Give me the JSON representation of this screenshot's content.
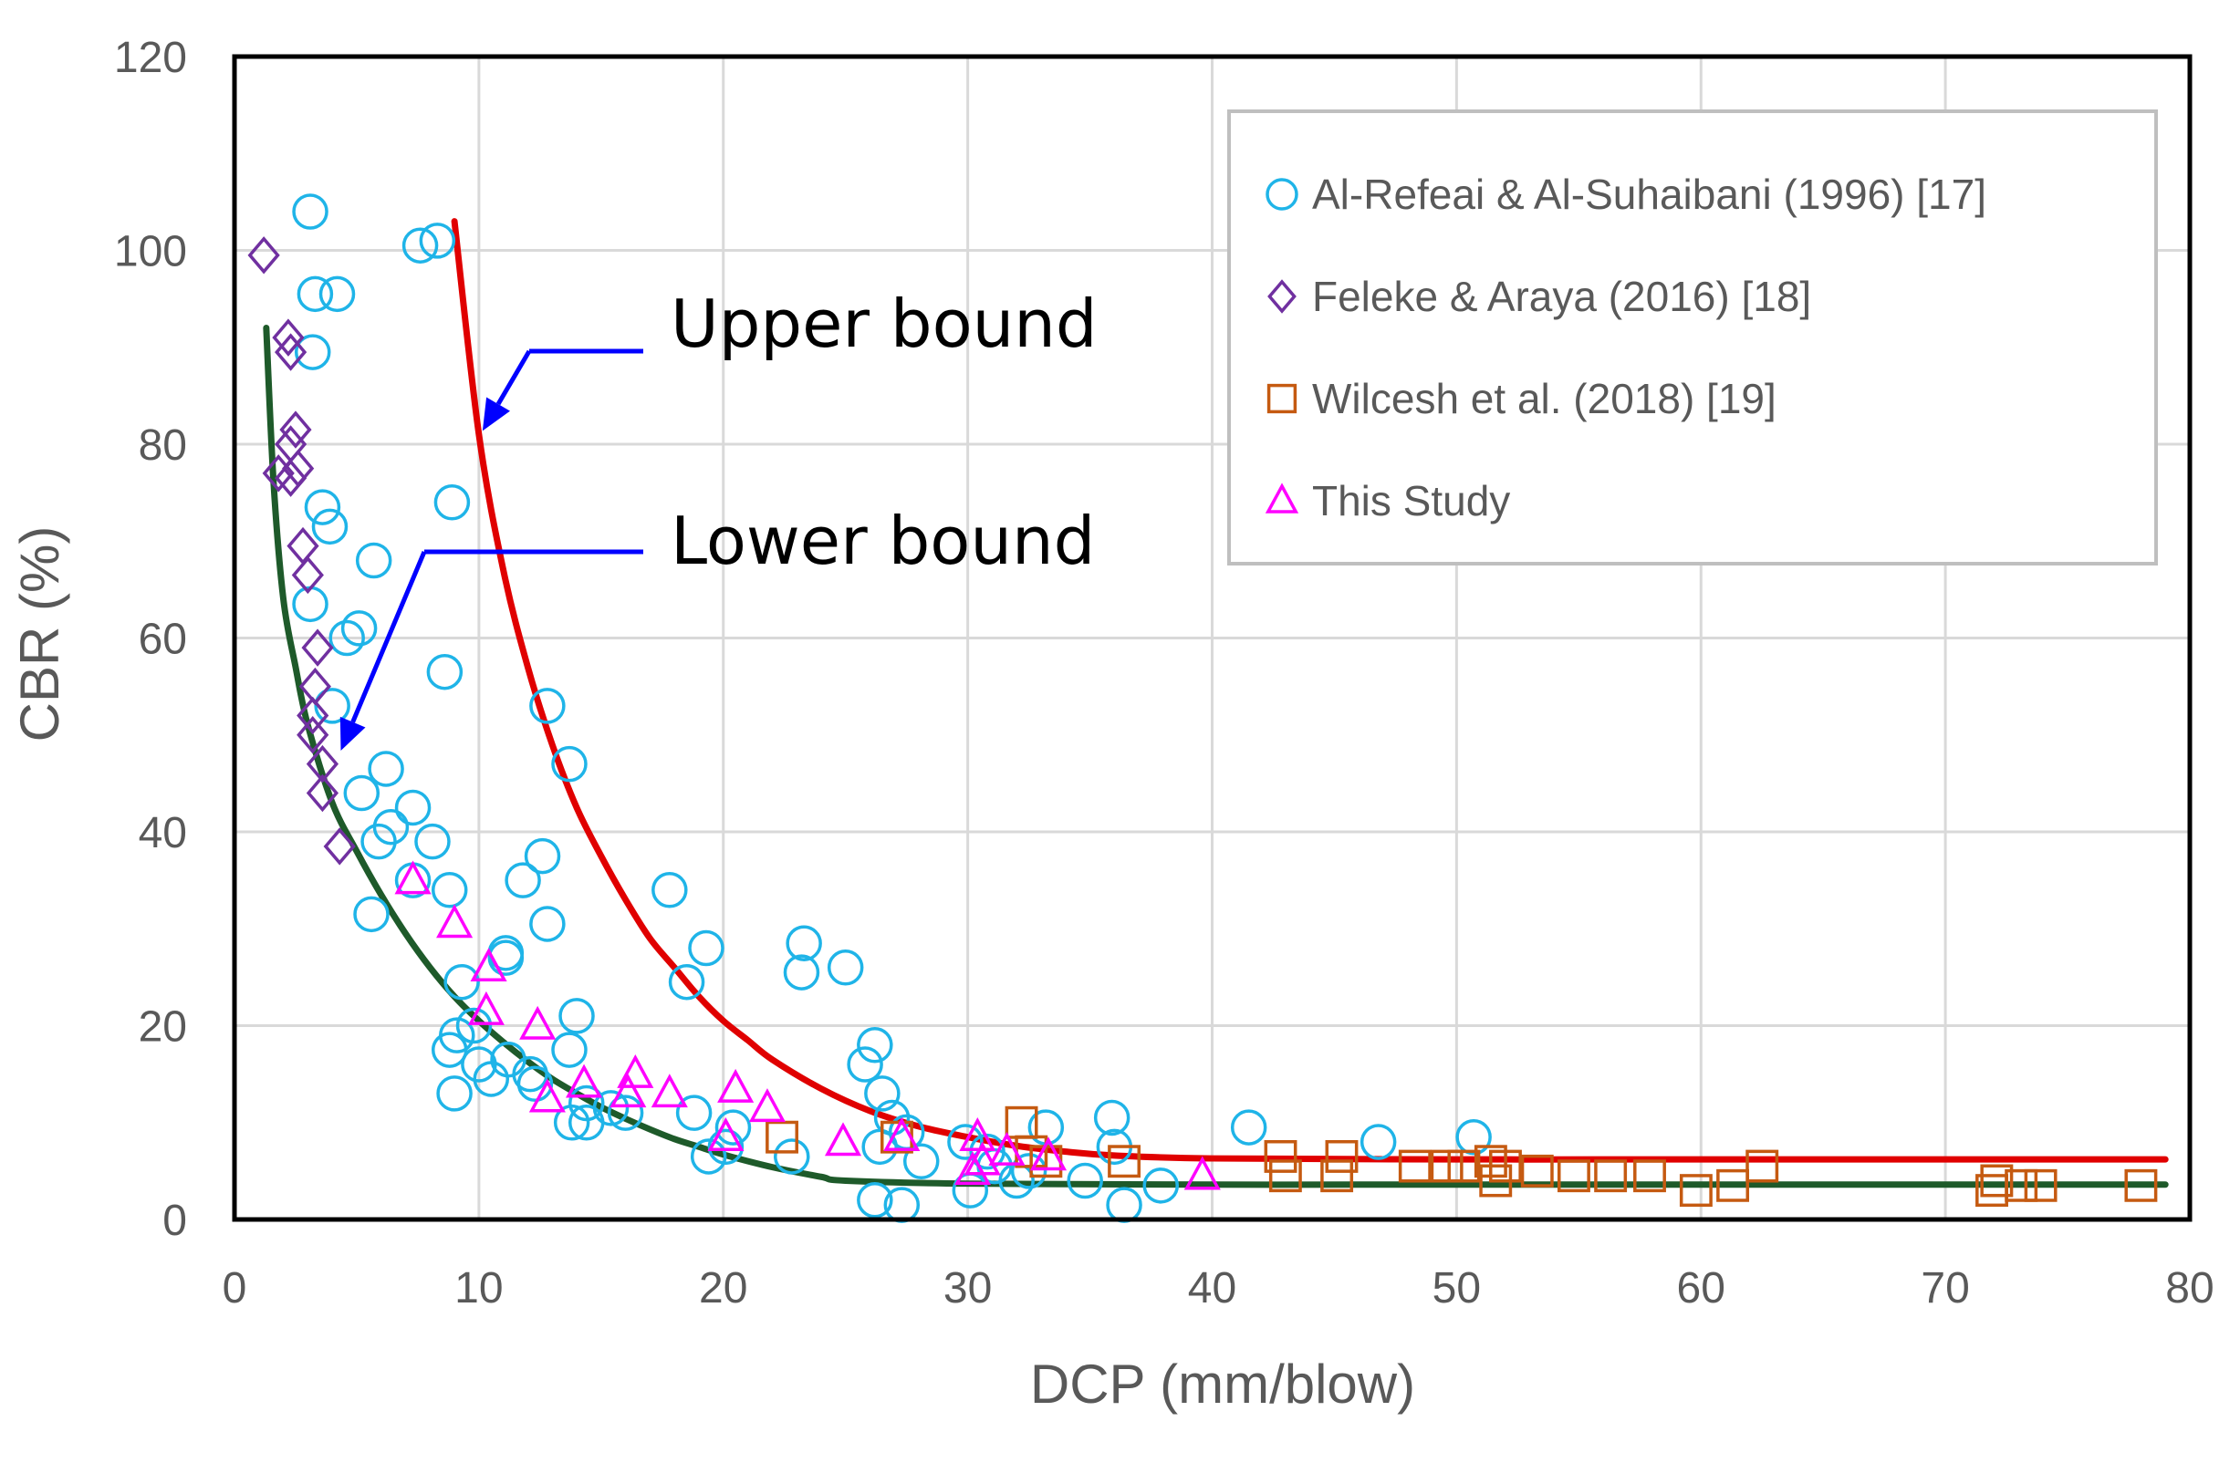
{
  "chart_data": {
    "type": "scatter",
    "title": "",
    "xlabel": "DCP (mm/blow)",
    "ylabel": "CBR (%)",
    "xlim": [
      0,
      80
    ],
    "ylim": [
      0,
      120
    ],
    "xticks": [
      "0",
      "10",
      "20",
      "30",
      "40",
      "50",
      "60",
      "70",
      "80"
    ],
    "yticks": [
      "0",
      "20",
      "40",
      "60",
      "80",
      "100",
      "120"
    ],
    "grid": true,
    "legend_position": "top-right",
    "series": [
      {
        "name": "Al-Refeai &  Al-Suhaibani (1996) [17]",
        "marker": "circle",
        "color": "#1fb4e8",
        "points": [
          [
            3.1,
            104
          ],
          [
            7.6,
            100.5
          ],
          [
            8.3,
            101
          ],
          [
            3.3,
            95.5
          ],
          [
            4.2,
            95.5
          ],
          [
            3.2,
            89.5
          ],
          [
            8.9,
            74
          ],
          [
            3.6,
            73.5
          ],
          [
            3.9,
            71.5
          ],
          [
            5.7,
            68
          ],
          [
            3.1,
            63.5
          ],
          [
            4.6,
            60
          ],
          [
            5.1,
            61
          ],
          [
            8.6,
            56.5
          ],
          [
            4.0,
            53
          ],
          [
            12.8,
            53
          ],
          [
            13.7,
            47
          ],
          [
            6.2,
            46.5
          ],
          [
            5.2,
            44
          ],
          [
            7.3,
            42.5
          ],
          [
            6.4,
            40.5
          ],
          [
            5.9,
            39
          ],
          [
            8.1,
            39
          ],
          [
            12.6,
            37.5
          ],
          [
            7.3,
            35
          ],
          [
            11.8,
            35
          ],
          [
            8.8,
            34
          ],
          [
            17.8,
            34
          ],
          [
            5.6,
            31.5
          ],
          [
            12.8,
            30.5
          ],
          [
            23.3,
            28.5
          ],
          [
            19.3,
            28
          ],
          [
            25.0,
            26
          ],
          [
            11.1,
            27.5
          ],
          [
            23.2,
            25.5
          ],
          [
            11.1,
            27
          ],
          [
            18.5,
            24.5
          ],
          [
            9.3,
            24.5
          ],
          [
            14.0,
            21
          ],
          [
            9.1,
            19
          ],
          [
            8.8,
            17.5
          ],
          [
            9.8,
            20
          ],
          [
            10.0,
            16
          ],
          [
            11.2,
            16.5
          ],
          [
            10.5,
            14.5
          ],
          [
            12.1,
            15
          ],
          [
            9.0,
            13
          ],
          [
            13.7,
            17.5
          ],
          [
            12.3,
            14
          ],
          [
            26.2,
            18
          ],
          [
            25.8,
            16
          ],
          [
            14.4,
            12
          ],
          [
            15.4,
            11.5
          ],
          [
            13.8,
            10
          ],
          [
            14.4,
            10
          ],
          [
            26.5,
            13
          ],
          [
            16.0,
            11
          ],
          [
            18.8,
            11
          ],
          [
            20.4,
            9.5
          ],
          [
            19.4,
            6.5
          ],
          [
            20.1,
            7.5
          ],
          [
            26.9,
            10.5
          ],
          [
            29.9,
            8
          ],
          [
            26.4,
            7.5
          ],
          [
            27.5,
            9
          ],
          [
            28.1,
            6
          ],
          [
            22.8,
            6.5
          ],
          [
            30.8,
            7
          ],
          [
            33.2,
            9.5
          ],
          [
            31.1,
            5.5
          ],
          [
            32.5,
            5
          ],
          [
            32.0,
            4
          ],
          [
            35.9,
            10.5
          ],
          [
            36.0,
            7.5
          ],
          [
            34.8,
            4
          ],
          [
            37.9,
            3.5
          ],
          [
            30.1,
            3
          ],
          [
            26.2,
            2
          ],
          [
            27.3,
            1.5
          ],
          [
            36.4,
            1.5
          ],
          [
            41.5,
            9.5
          ],
          [
            46.8,
            8
          ],
          [
            50.7,
            8.5
          ]
        ]
      },
      {
        "name": "Feleke & Araya (2016)  [18]",
        "marker": "diamond",
        "color": "#7030a0",
        "points": [
          [
            1.2,
            99.5
          ],
          [
            2.2,
            91
          ],
          [
            2.3,
            89.5
          ],
          [
            2.5,
            81.5
          ],
          [
            2.3,
            80
          ],
          [
            2.6,
            77.5
          ],
          [
            1.8,
            77
          ],
          [
            2.3,
            76.5
          ],
          [
            2.8,
            69.5
          ],
          [
            3.0,
            66.5
          ],
          [
            3.4,
            59
          ],
          [
            3.3,
            55
          ],
          [
            3.2,
            52
          ],
          [
            3.2,
            50
          ],
          [
            3.6,
            47
          ],
          [
            3.6,
            44
          ],
          [
            4.3,
            38.5
          ]
        ]
      },
      {
        "name": "Wilcesh et al. (2018) [19]",
        "marker": "square",
        "color": "#c55a11",
        "points": [
          [
            22.4,
            8.5
          ],
          [
            27.1,
            8.5
          ],
          [
            32.2,
            10
          ],
          [
            32.6,
            7
          ],
          [
            33.2,
            6
          ],
          [
            36.4,
            6
          ],
          [
            42.8,
            6.5
          ],
          [
            43.0,
            4.5
          ],
          [
            45.1,
            4.5
          ],
          [
            45.3,
            6.5
          ],
          [
            48.3,
            5.5
          ],
          [
            49.6,
            5.5
          ],
          [
            50.3,
            5.5
          ],
          [
            51.4,
            6
          ],
          [
            51.6,
            4
          ],
          [
            52.0,
            5.5
          ],
          [
            53.3,
            5
          ],
          [
            54.8,
            4.5
          ],
          [
            56.3,
            4.5
          ],
          [
            57.9,
            4.5
          ],
          [
            59.8,
            3
          ],
          [
            61.3,
            3.5
          ],
          [
            62.5,
            5.5
          ],
          [
            71.9,
            3
          ],
          [
            72.1,
            4
          ],
          [
            73.1,
            3.5
          ],
          [
            73.9,
            3.5
          ],
          [
            78.0,
            3.5
          ]
        ]
      },
      {
        "name": "This Study",
        "marker": "triangle",
        "color": "#ff00ff",
        "points": [
          [
            7.3,
            35
          ],
          [
            9.0,
            30.5
          ],
          [
            10.4,
            26
          ],
          [
            10.3,
            21.5
          ],
          [
            12.4,
            20
          ],
          [
            16.4,
            15
          ],
          [
            14.3,
            14
          ],
          [
            16.1,
            13
          ],
          [
            12.8,
            12.5
          ],
          [
            17.8,
            13
          ],
          [
            20.5,
            13.5
          ],
          [
            21.8,
            11.5
          ],
          [
            20.1,
            8.5
          ],
          [
            24.9,
            8
          ],
          [
            27.3,
            8.5
          ],
          [
            30.4,
            8.5
          ],
          [
            31.6,
            7
          ],
          [
            30.2,
            5
          ],
          [
            30.6,
            6
          ],
          [
            33.3,
            6.5
          ],
          [
            39.6,
            4.5
          ]
        ]
      }
    ],
    "curves": [
      {
        "name": "Upper bound",
        "color": "#e00000",
        "points": [
          [
            9,
            103
          ],
          [
            10,
            81
          ],
          [
            11,
            67
          ],
          [
            12,
            57
          ],
          [
            13,
            49
          ],
          [
            14,
            42.5
          ],
          [
            15,
            37.5
          ],
          [
            16,
            33
          ],
          [
            17,
            29
          ],
          [
            18,
            26
          ],
          [
            19,
            23
          ],
          [
            20,
            20.5
          ],
          [
            21,
            18.5
          ],
          [
            22,
            16.5
          ],
          [
            24,
            13.5
          ],
          [
            26,
            11.2
          ],
          [
            28,
            9.6
          ],
          [
            30,
            8.5
          ],
          [
            32,
            7.6
          ],
          [
            34,
            7.0
          ],
          [
            36,
            6.6
          ],
          [
            40,
            6.3
          ],
          [
            50,
            6.2
          ],
          [
            60,
            6.2
          ],
          [
            70,
            6.2
          ],
          [
            79,
            6.2
          ]
        ]
      },
      {
        "name": "Lower bound",
        "color": "#1e5a2a",
        "points": [
          [
            1.3,
            92
          ],
          [
            1.6,
            76
          ],
          [
            2,
            64
          ],
          [
            2.5,
            57
          ],
          [
            3,
            51
          ],
          [
            4,
            43
          ],
          [
            5,
            38
          ],
          [
            6,
            33.5
          ],
          [
            7,
            29.5
          ],
          [
            8,
            26
          ],
          [
            9,
            23
          ],
          [
            10,
            20.5
          ],
          [
            11,
            18.3
          ],
          [
            12,
            16.3
          ],
          [
            13,
            14.5
          ],
          [
            14,
            13
          ],
          [
            15,
            11.6
          ],
          [
            16,
            10.4
          ],
          [
            17,
            9.3
          ],
          [
            18,
            8.3
          ],
          [
            19,
            7.5
          ],
          [
            20,
            6.7
          ],
          [
            22,
            5.4
          ],
          [
            24,
            4.4
          ],
          [
            25,
            4.0
          ],
          [
            30,
            3.7
          ],
          [
            40,
            3.6
          ],
          [
            50,
            3.6
          ],
          [
            60,
            3.6
          ],
          [
            70,
            3.6
          ],
          [
            79,
            3.6
          ]
        ]
      }
    ],
    "annotations": [
      {
        "text": "Upper bound",
        "arrow_to": [
          10,
          81
        ]
      },
      {
        "text": "Lower bound",
        "arrow_to": [
          4.2,
          48
        ]
      }
    ]
  }
}
